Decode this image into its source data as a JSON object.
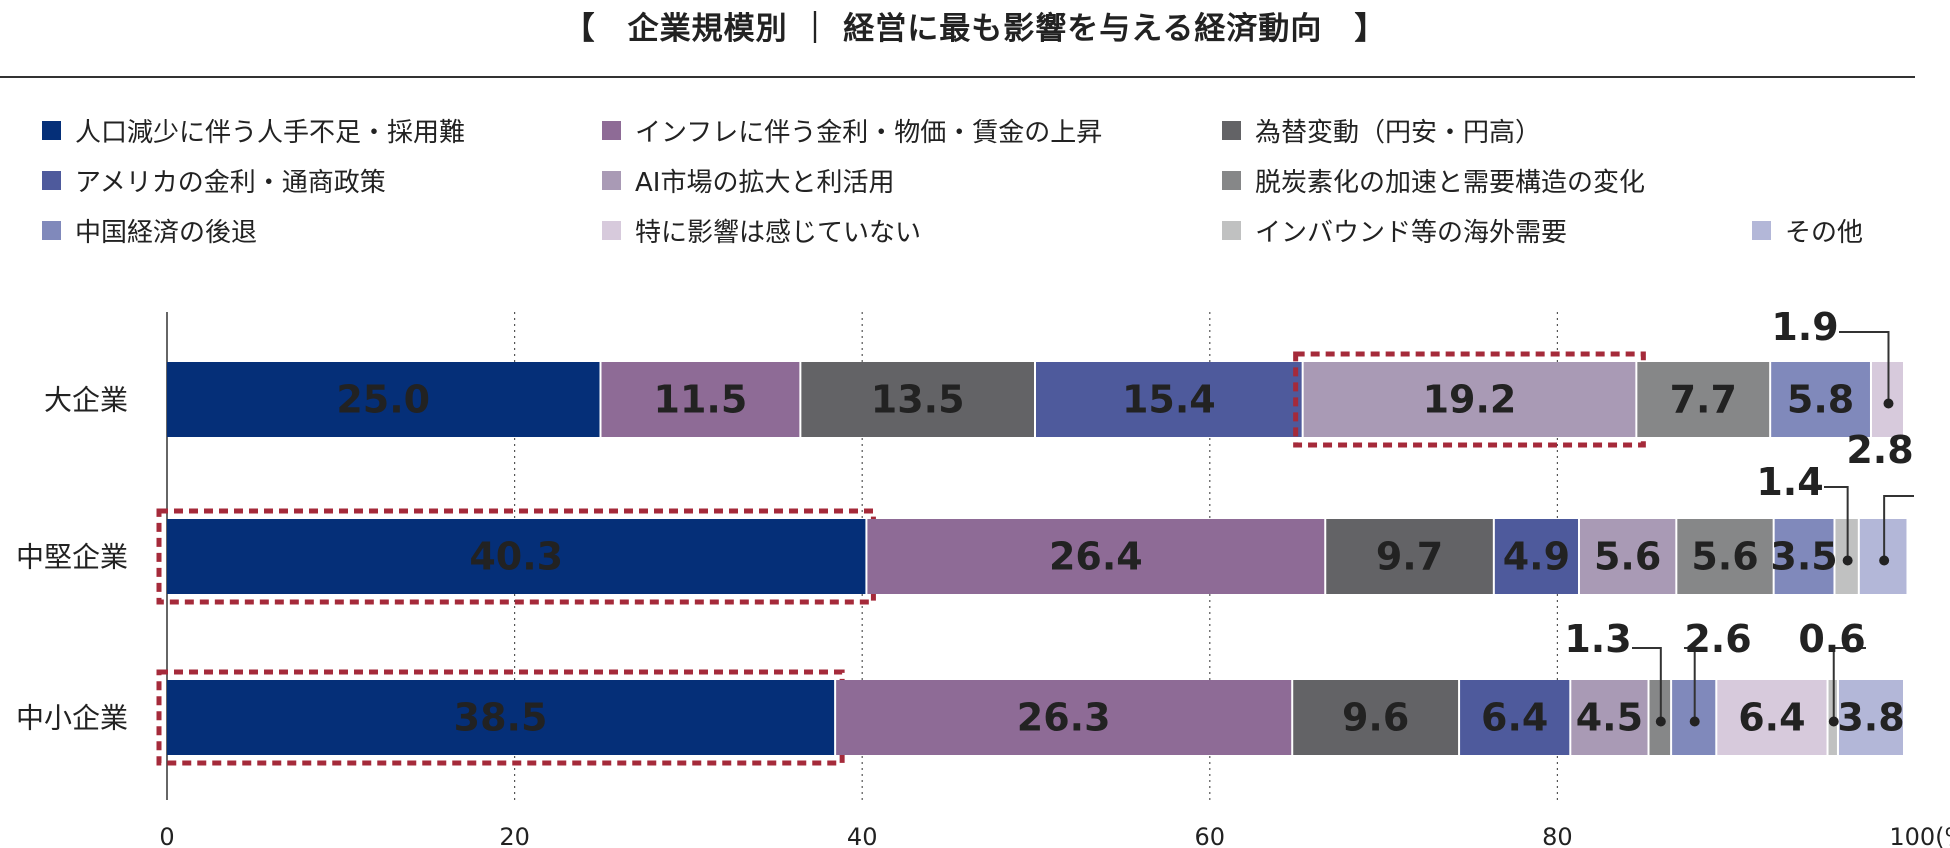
{
  "title": "【　企業規模別 ｜ 経営に最も影響を与える経済動向　】",
  "colors": {
    "s1": "#052f78",
    "s2": "#8e6b96",
    "s3": "#636366",
    "s4": "#4e5a9c",
    "s5": "#a99ab5",
    "s6": "#868788",
    "s7": "#8089bb",
    "s8": "#d7cadc",
    "s9": "#c0c1c1",
    "s10": "#b3b7d8",
    "highlight": "#a52a3a"
  },
  "legend": [
    {
      "label": "人口減少に伴う人手不足・採用難",
      "color": "#052f78"
    },
    {
      "label": "インフレに伴う金利・物価・賃金の上昇",
      "color": "#8e6b96"
    },
    {
      "label": "為替変動（円安・円高）",
      "color": "#636366"
    },
    {
      "label": "アメリカの金利・通商政策",
      "color": "#4e5a9c"
    },
    {
      "label": "AI市場の拡大と利活用",
      "color": "#a99ab5"
    },
    {
      "label": "脱炭素化の加速と需要構造の変化",
      "color": "#868788"
    },
    {
      "label": "中国経済の後退",
      "color": "#8089bb"
    },
    {
      "label": "特に影響は感じていない",
      "color": "#d7cadc"
    },
    {
      "label": "インバウンド等の海外需要",
      "color": "#c0c1c1"
    },
    {
      "label": "その他",
      "color": "#b3b7d8"
    }
  ],
  "chart_data": {
    "type": "bar",
    "orientation": "horizontal-stacked",
    "categories": [
      "大企業",
      "中堅企業",
      "中小企業"
    ],
    "x_ticks": [
      "0",
      "20",
      "40",
      "60",
      "80",
      "100(%)"
    ],
    "xlim": [
      0,
      100
    ],
    "grid": "vertical dotted at 20, 40, 60, 80",
    "rows": [
      {
        "category": "大企業",
        "segments": [
          {
            "value": 25.0,
            "label": "25.0",
            "color": "#052f78"
          },
          {
            "value": 11.5,
            "label": "11.5",
            "color": "#8e6b96"
          },
          {
            "value": 13.5,
            "label": "13.5",
            "color": "#636366"
          },
          {
            "value": 15.4,
            "label": "15.4",
            "color": "#4e5a9c"
          },
          {
            "value": 19.2,
            "label": "19.2",
            "color": "#a99ab5",
            "highlight": true
          },
          {
            "value": 7.7,
            "label": "7.7",
            "color": "#868788"
          },
          {
            "value": 5.8,
            "label": "5.8",
            "color": "#8089bb"
          },
          {
            "value": 1.9,
            "label": "1.9",
            "color": "#d7cadc",
            "callout": true
          }
        ]
      },
      {
        "category": "中堅企業",
        "segments": [
          {
            "value": 40.3,
            "label": "40.3",
            "color": "#052f78",
            "highlight": true
          },
          {
            "value": 26.4,
            "label": "26.4",
            "color": "#8e6b96"
          },
          {
            "value": 9.7,
            "label": "9.7",
            "color": "#636366"
          },
          {
            "value": 4.9,
            "label": "4.9",
            "color": "#4e5a9c"
          },
          {
            "value": 5.6,
            "label": "5.6",
            "color": "#a99ab5"
          },
          {
            "value": 5.6,
            "label": "5.6",
            "color": "#868788"
          },
          {
            "value": 3.5,
            "label": "3.5",
            "color": "#8089bb"
          },
          {
            "value": 1.4,
            "label": "1.4",
            "color": "#c0c1c1",
            "callout": true
          },
          {
            "value": 2.8,
            "label": "2.8",
            "color": "#b3b7d8",
            "callout": true
          }
        ]
      },
      {
        "category": "中小企業",
        "segments": [
          {
            "value": 38.5,
            "label": "38.5",
            "color": "#052f78",
            "highlight": true
          },
          {
            "value": 26.3,
            "label": "26.3",
            "color": "#8e6b96"
          },
          {
            "value": 9.6,
            "label": "9.6",
            "color": "#636366"
          },
          {
            "value": 6.4,
            "label": "6.4",
            "color": "#4e5a9c"
          },
          {
            "value": 4.5,
            "label": "4.5",
            "color": "#a99ab5"
          },
          {
            "value": 1.3,
            "label": "1.3",
            "color": "#868788",
            "callout": true
          },
          {
            "value": 2.6,
            "label": "2.6",
            "color": "#8089bb",
            "callout": true
          },
          {
            "value": 6.4,
            "label": "6.4",
            "color": "#d7cadc"
          },
          {
            "value": 0.6,
            "label": "0.6",
            "color": "#c0c1c1",
            "callout": true
          },
          {
            "value": 3.8,
            "label": "3.8",
            "color": "#b3b7d8"
          }
        ]
      }
    ]
  }
}
